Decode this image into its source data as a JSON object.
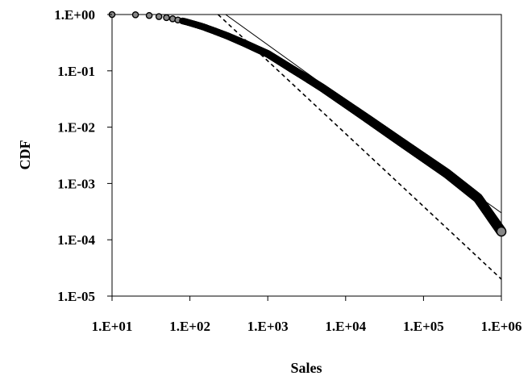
{
  "chart_data": {
    "type": "scatter",
    "title": "",
    "xlabel": "Sales",
    "ylabel": "CDF",
    "x_scale": "log",
    "y_scale": "log",
    "xlim": [
      10,
      1000000
    ],
    "ylim": [
      1e-05,
      1
    ],
    "x_ticks": [
      "1.E+01",
      "1.E+02",
      "1.E+03",
      "1.E+04",
      "1.E+05",
      "1.E+06"
    ],
    "y_ticks": [
      "1.E+00",
      "1.E-01",
      "1.E-02",
      "1.E-03",
      "1.E-04",
      "1.E-05"
    ],
    "grid": false,
    "legend": "none",
    "series": [
      {
        "kind": "markers",
        "x": [
          10,
          20,
          30,
          40,
          50,
          60,
          70,
          80,
          90,
          100,
          120,
          150,
          200,
          300,
          500,
          700,
          1000,
          2000,
          3000,
          5000,
          10000,
          20000,
          50000,
          100000,
          200000,
          500000,
          1000000
        ],
        "y": [
          1,
          0.99,
          0.96,
          0.92,
          0.88,
          0.84,
          0.8,
          0.77,
          0.74,
          0.71,
          0.66,
          0.6,
          0.52,
          0.42,
          0.31,
          0.25,
          0.2,
          0.11,
          0.078,
          0.05,
          0.026,
          0.0135,
          0.0056,
          0.0029,
          0.0015,
          0.00055,
          0.00014
        ]
      },
      {
        "kind": "line",
        "style": "solid",
        "x": [
          250,
          1000000
        ],
        "y": [
          1.15,
          0.0003
        ]
      },
      {
        "kind": "line",
        "style": "dashed",
        "x": [
          230,
          1000000
        ],
        "y": [
          1.0,
          2e-05
        ]
      }
    ],
    "colors": {
      "axis": "#000000",
      "marker_edge": "#000000",
      "marker_fill": "#888888",
      "line": "#000000"
    }
  }
}
